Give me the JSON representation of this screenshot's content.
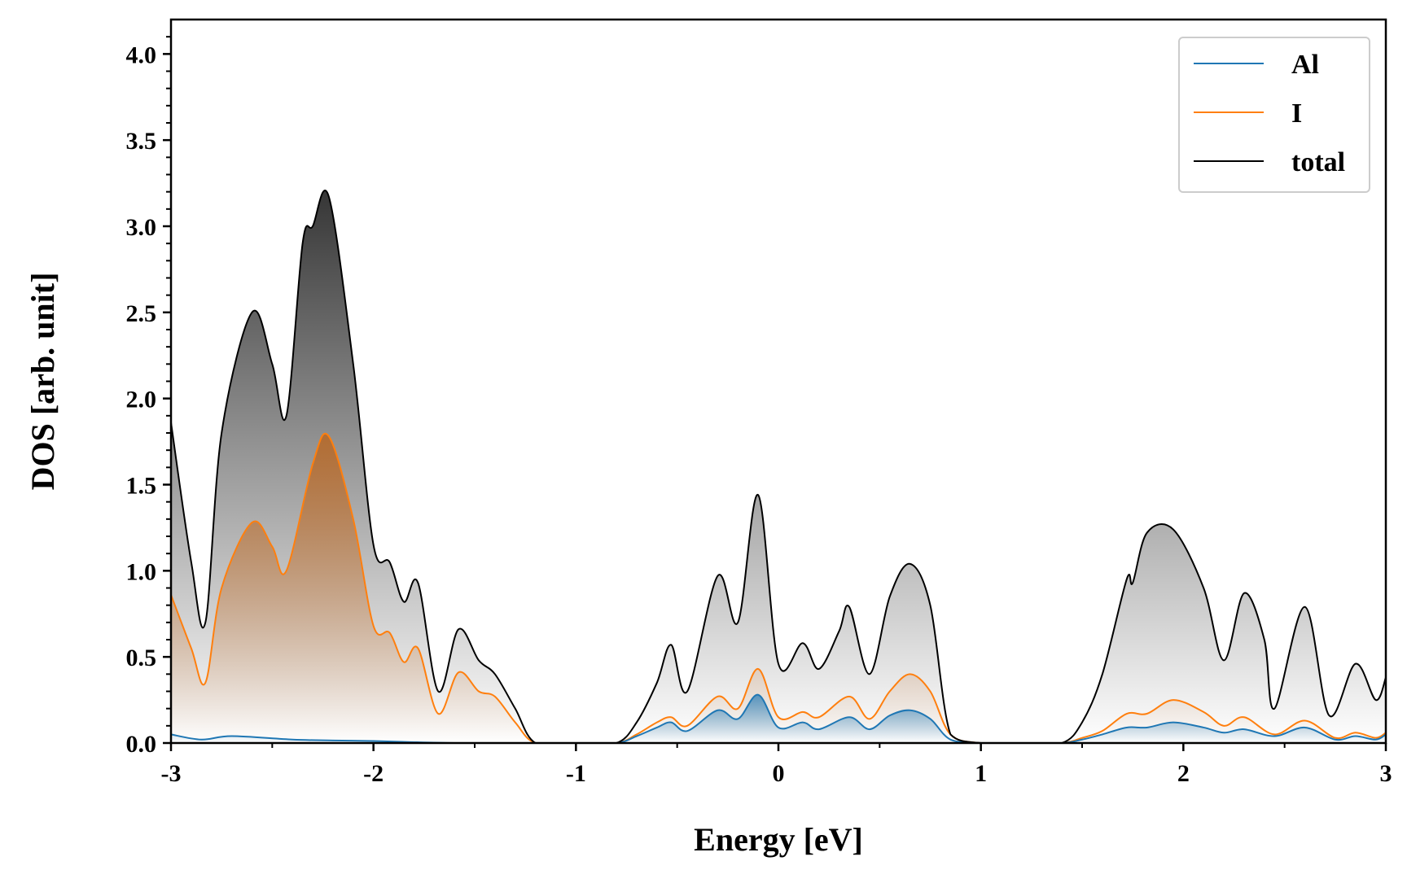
{
  "chart_data": {
    "type": "area",
    "xlabel": "Energy [eV]",
    "ylabel": "DOS [arb. unit]",
    "xlim": [
      -3,
      3
    ],
    "ylim": [
      0,
      4.2
    ],
    "x_ticks": [
      -3,
      -2,
      -1,
      0,
      1,
      2,
      3
    ],
    "x_tick_labels": [
      "-3",
      "-2",
      "-1",
      "0",
      "1",
      "2",
      "3"
    ],
    "y_ticks": [
      0.0,
      0.5,
      1.0,
      1.5,
      2.0,
      2.5,
      3.0,
      3.5,
      4.0
    ],
    "y_tick_labels": [
      "0.0",
      "0.5",
      "1.0",
      "1.5",
      "2.0",
      "2.5",
      "3.0",
      "3.5",
      "4.0"
    ],
    "legend_position": "top-right",
    "grid": false,
    "series": [
      {
        "name": "Al",
        "color": "#1f77b4",
        "fill_color": "#1f77b4",
        "x": [
          -3.0,
          -2.85,
          -2.7,
          -2.4,
          -2.2,
          -2.0,
          -1.8,
          -1.6,
          -1.4,
          -1.2,
          -1.0,
          -0.8,
          -0.7,
          -0.6,
          -0.53,
          -0.45,
          -0.3,
          -0.2,
          -0.1,
          0.0,
          0.12,
          0.2,
          0.35,
          0.45,
          0.55,
          0.65,
          0.75,
          0.85,
          1.0,
          1.2,
          1.4,
          1.5,
          1.6,
          1.72,
          1.82,
          1.95,
          2.1,
          2.2,
          2.3,
          2.45,
          2.6,
          2.75,
          2.85,
          2.95,
          3.0
        ],
        "y": [
          0.05,
          0.02,
          0.04,
          0.02,
          0.015,
          0.012,
          0.005,
          0.0,
          0.0,
          0.0,
          0.0,
          0.0,
          0.04,
          0.09,
          0.12,
          0.07,
          0.19,
          0.14,
          0.28,
          0.09,
          0.12,
          0.08,
          0.15,
          0.08,
          0.16,
          0.19,
          0.14,
          0.02,
          0.0,
          0.0,
          0.0,
          0.02,
          0.05,
          0.09,
          0.09,
          0.12,
          0.09,
          0.06,
          0.08,
          0.04,
          0.09,
          0.02,
          0.04,
          0.02,
          0.05
        ]
      },
      {
        "name": "I",
        "color": "#ff7f0e",
        "fill_color": "#c06010",
        "x": [
          -3.0,
          -2.9,
          -2.83,
          -2.75,
          -2.6,
          -2.5,
          -2.43,
          -2.3,
          -2.22,
          -2.1,
          -2.0,
          -1.92,
          -1.85,
          -1.78,
          -1.68,
          -1.58,
          -1.48,
          -1.4,
          -1.3,
          -1.2,
          -1.0,
          -0.8,
          -0.7,
          -0.6,
          -0.53,
          -0.45,
          -0.3,
          -0.2,
          -0.1,
          0.0,
          0.12,
          0.2,
          0.35,
          0.45,
          0.55,
          0.65,
          0.75,
          0.85,
          1.0,
          1.2,
          1.4,
          1.5,
          1.6,
          1.72,
          1.82,
          1.95,
          2.1,
          2.2,
          2.3,
          2.45,
          2.6,
          2.75,
          2.85,
          2.95,
          3.0
        ],
        "y": [
          0.86,
          0.55,
          0.35,
          0.9,
          1.28,
          1.14,
          1.0,
          1.62,
          1.78,
          1.3,
          0.68,
          0.64,
          0.47,
          0.55,
          0.17,
          0.41,
          0.3,
          0.27,
          0.12,
          0.0,
          0.0,
          0.0,
          0.05,
          0.12,
          0.15,
          0.1,
          0.27,
          0.2,
          0.43,
          0.15,
          0.18,
          0.15,
          0.27,
          0.14,
          0.3,
          0.4,
          0.3,
          0.05,
          0.0,
          0.0,
          0.0,
          0.03,
          0.07,
          0.17,
          0.17,
          0.25,
          0.18,
          0.1,
          0.15,
          0.05,
          0.13,
          0.03,
          0.06,
          0.03,
          0.06
        ]
      },
      {
        "name": "total",
        "color": "#000000",
        "fill_color": "#000000",
        "x": [
          -3.0,
          -2.9,
          -2.83,
          -2.75,
          -2.6,
          -2.5,
          -2.43,
          -2.35,
          -2.3,
          -2.22,
          -2.1,
          -2.0,
          -1.92,
          -1.85,
          -1.78,
          -1.68,
          -1.58,
          -1.48,
          -1.4,
          -1.3,
          -1.2,
          -1.0,
          -0.8,
          -0.7,
          -0.6,
          -0.53,
          -0.45,
          -0.3,
          -0.2,
          -0.1,
          0.0,
          0.12,
          0.2,
          0.3,
          0.35,
          0.45,
          0.55,
          0.65,
          0.75,
          0.85,
          1.0,
          1.2,
          1.4,
          1.5,
          1.6,
          1.72,
          1.75,
          1.82,
          1.95,
          2.1,
          2.2,
          2.3,
          2.4,
          2.45,
          2.6,
          2.72,
          2.85,
          2.95,
          3.0
        ],
        "y": [
          1.86,
          1.05,
          0.7,
          1.8,
          2.5,
          2.2,
          1.9,
          2.9,
          3.0,
          3.17,
          2.2,
          1.15,
          1.05,
          0.82,
          0.93,
          0.3,
          0.66,
          0.48,
          0.4,
          0.2,
          0.0,
          0.0,
          0.0,
          0.12,
          0.35,
          0.57,
          0.3,
          0.97,
          0.7,
          1.44,
          0.46,
          0.58,
          0.43,
          0.65,
          0.79,
          0.4,
          0.85,
          1.04,
          0.8,
          0.05,
          0.0,
          0.0,
          0.0,
          0.12,
          0.4,
          0.95,
          0.93,
          1.22,
          1.24,
          0.9,
          0.48,
          0.87,
          0.6,
          0.2,
          0.79,
          0.16,
          0.46,
          0.25,
          0.38
        ]
      }
    ]
  }
}
